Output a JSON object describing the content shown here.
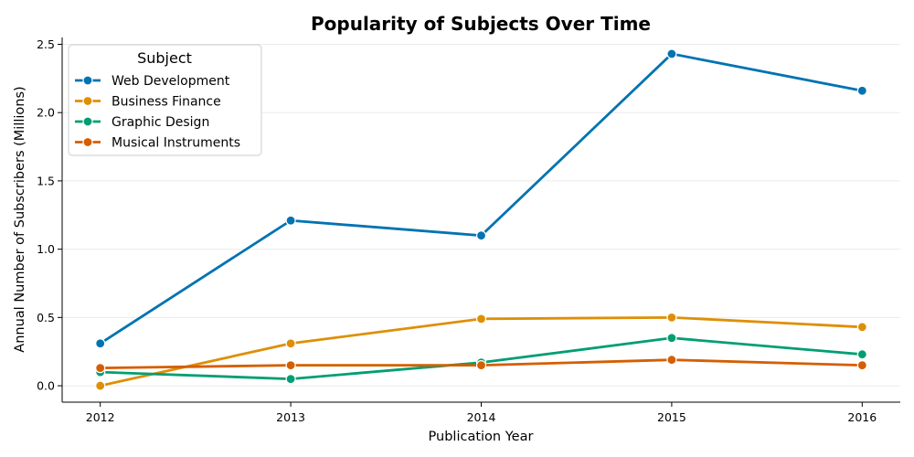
{
  "chart_data": {
    "type": "line",
    "title": "Popularity of Subjects Over Time",
    "xlabel": "Publication Year",
    "ylabel": "Annual Number of Subscribers (Millions)",
    "x": [
      "2012",
      "2013",
      "2014",
      "2015",
      "2016"
    ],
    "xlim": [
      2011.8,
      2016.2
    ],
    "ylim": [
      -0.12,
      2.55
    ],
    "yticks": [
      0.0,
      0.5,
      1.0,
      1.5,
      2.0,
      2.5
    ],
    "ytick_labels": [
      "0.0",
      "0.5",
      "1.0",
      "1.5",
      "2.0",
      "2.5"
    ],
    "grid": "horizontal",
    "legend": {
      "title": "Subject",
      "placement": "top-left"
    },
    "series": [
      {
        "name": "Web Development",
        "color": "#0173b2",
        "values": [
          0.31,
          1.21,
          1.1,
          2.43,
          2.16
        ]
      },
      {
        "name": "Business Finance",
        "color": "#de8f05",
        "values": [
          0.0,
          0.31,
          0.49,
          0.5,
          0.43
        ]
      },
      {
        "name": "Graphic Design",
        "color": "#029e73",
        "values": [
          0.1,
          0.05,
          0.17,
          0.35,
          0.23
        ]
      },
      {
        "name": "Musical Instruments",
        "color": "#d55e00",
        "values": [
          0.13,
          0.15,
          0.15,
          0.19,
          0.15
        ]
      }
    ]
  }
}
